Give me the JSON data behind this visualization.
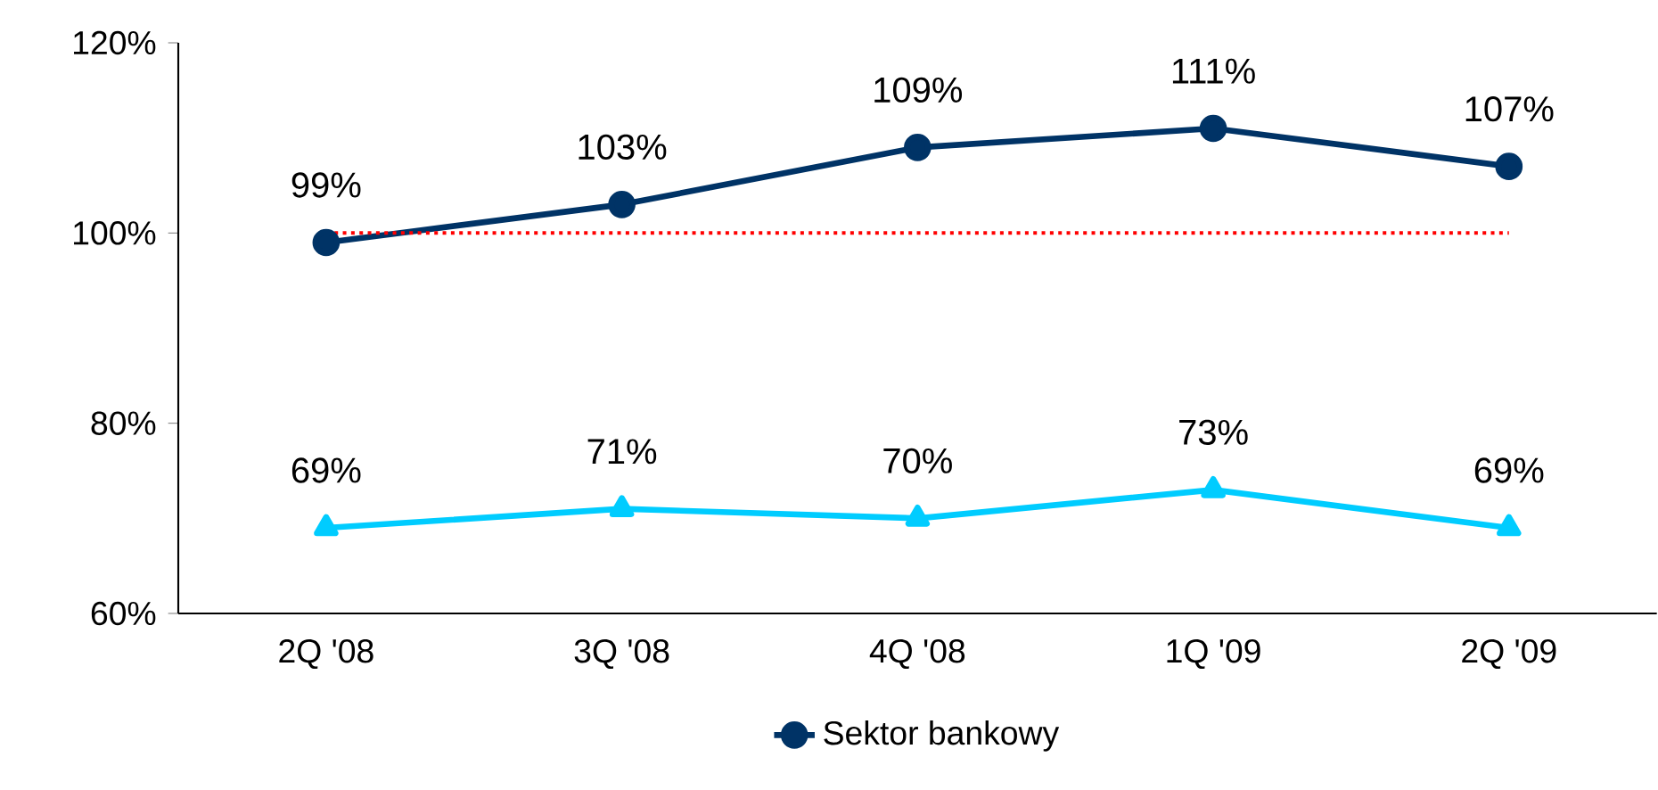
{
  "chart_data": {
    "type": "line",
    "categories": [
      "2Q '08",
      "3Q '08",
      "4Q '08",
      "1Q '09",
      "2Q '09"
    ],
    "series": [
      {
        "color": "#00ccff",
        "marker": "triangle",
        "values": [
          69,
          71,
          70,
          73,
          69
        ],
        "value_labels": [
          "69%",
          "71%",
          "70%",
          "73%",
          "69%"
        ]
      },
      {
        "name": "Sektor bankowy",
        "color": "#003366",
        "marker": "circle",
        "values": [
          99,
          103,
          109,
          111,
          107
        ],
        "value_labels": [
          "99%",
          "103%",
          "109%",
          "111%",
          "107%"
        ]
      }
    ],
    "ylim": [
      60,
      120
    ],
    "yticks": [
      {
        "value": 60,
        "label": "60%"
      },
      {
        "value": 80,
        "label": "80%"
      },
      {
        "value": 100,
        "label": "100%"
      },
      {
        "value": 120,
        "label": "120%"
      }
    ],
    "ref_lines": [
      {
        "axis": "y",
        "value": 100,
        "color": "#ff0000",
        "line_style": "dotted"
      }
    ],
    "grid": false,
    "legend": "bottom",
    "line_style": "solid"
  }
}
